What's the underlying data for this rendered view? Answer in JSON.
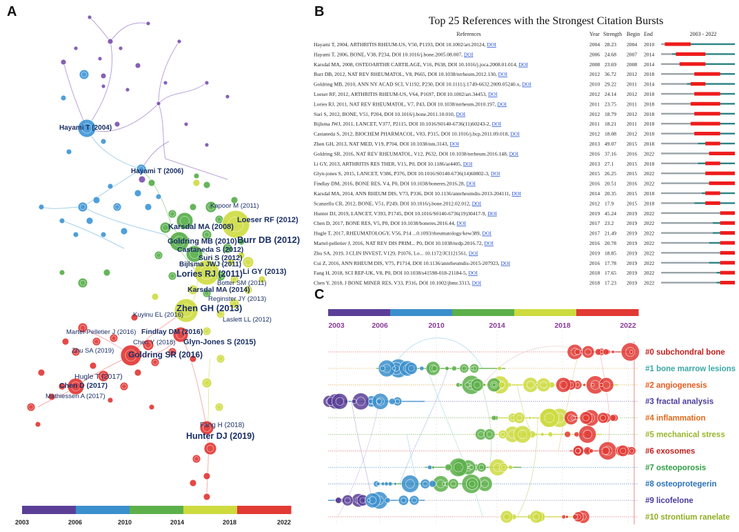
{
  "panels": {
    "a": "A",
    "b": "B",
    "c": "C"
  },
  "network": {
    "labels": [
      {
        "text": "Hayami T (2004)",
        "bold": true
      },
      {
        "text": "Hayami T (2006)",
        "bold": true
      },
      {
        "text": "Kapoor M (2011)",
        "bold": false
      },
      {
        "text": "Loeser RF (2012)",
        "bold": true
      },
      {
        "text": "Karsdal MA (2008)",
        "bold": true
      },
      {
        "text": "Burr DB (2012)",
        "bold": true
      },
      {
        "text": "Goldring MB (2010)",
        "bold": true
      },
      {
        "text": "Castaneda S (2012)",
        "bold": true
      },
      {
        "text": "Suri S (2012)",
        "bold": true
      },
      {
        "text": "Bijlsma JWJ (2011)",
        "bold": true
      },
      {
        "text": "Li GY (2013)",
        "bold": true
      },
      {
        "text": "Lories RJ (2011)",
        "bold": true
      },
      {
        "text": "Botter SM (2011)",
        "bold": false
      },
      {
        "text": "Karsdal MA (2014)",
        "bold": true
      },
      {
        "text": "Reginster JY (2013)",
        "bold": false
      },
      {
        "text": "Zhen GH (2013)",
        "bold": true
      },
      {
        "text": "Kuyinu EL (2016)",
        "bold": false
      },
      {
        "text": "Laslett LL (2012)",
        "bold": false
      },
      {
        "text": "Martel-Pelletier J (2016)",
        "bold": false
      },
      {
        "text": "Findlay DM (2016)",
        "bold": true
      },
      {
        "text": "Chen Y (2018)",
        "bold": false
      },
      {
        "text": "Glyn-Jones S (2015)",
        "bold": true
      },
      {
        "text": "Zhu SA (2019)",
        "bold": false
      },
      {
        "text": "Goldring SR (2016)",
        "bold": true
      },
      {
        "text": "Hugle T (2017)",
        "bold": false
      },
      {
        "text": "Chen D (2017)",
        "bold": true
      },
      {
        "text": "Mathiessen A (2017)",
        "bold": false
      },
      {
        "text": "Fang H (2018)",
        "bold": false
      },
      {
        "text": "Hunter DJ (2019)",
        "bold": true
      }
    ],
    "timeline_years": [
      "2003",
      "2006",
      "2010",
      "2014",
      "2018",
      "2022"
    ],
    "timeline_colors": [
      "#5b3f97",
      "#3a8fcc",
      "#5cb04a",
      "#cddb3f",
      "#e23a35"
    ]
  },
  "bursts": {
    "title": "Top 25 References with the Strongest Citation Bursts",
    "headers": {
      "references": "References",
      "year": "Year",
      "strength": "Strength",
      "begin": "Begin",
      "end": "End",
      "range": "2003 - 2022"
    },
    "colors": {
      "bar": "#2a8283",
      "burst": "#ee1c1c",
      "before": "#9aa3a8"
    },
    "rows": [
      {
        "ref": "Hayami T, 2004, ARTHRITIS RHEUM-US, V50, P1193, DOI 10.1002/art.20124,",
        "doi": "DOI",
        "year": "2004",
        "strength": "28.23",
        "begin": "2004",
        "end": "2010"
      },
      {
        "ref": "Hayami T, 2006, BONE, V38, P234, DOI 10.1016/j.bone.2005.08.007,",
        "doi": "DOI",
        "year": "2006",
        "strength": "24.68",
        "begin": "2007",
        "end": "2014"
      },
      {
        "ref": "Karsdal MA, 2008, OSTEOARTHR CARTILAGE, V16, P638, DOI 10.1016/j.joca.2008.01.014,",
        "doi": "DOI",
        "year": "2008",
        "strength": "23.69",
        "begin": "2008",
        "end": "2014"
      },
      {
        "ref": "Burr DB, 2012, NAT REV RHEUMATOL, V8, P665, DOI 10.1038/nrrheum.2012.130,",
        "doi": "DOI",
        "year": "2012",
        "strength": "36.72",
        "begin": "2012",
        "end": "2018"
      },
      {
        "ref": "Goldring MB, 2010, ANN NY ACAD SCI, V1192, P230, DOI 10.1111/j.1749-6632.2009.05240.x,",
        "doi": "DOI",
        "year": "2010",
        "strength": "29.22",
        "begin": "2011",
        "end": "2014"
      },
      {
        "ref": "Loeser RF, 2012, ARTHRITIS RHEUM-US, V64, P1697, DOI 10.1002/art.34453,",
        "doi": "DOI",
        "year": "2012",
        "strength": "24.14",
        "begin": "2012",
        "end": "2018"
      },
      {
        "ref": "Lories RJ, 2011, NAT REV RHEUMATOL, V7, P43, DOI 10.1038/nrrheum.2010.197,",
        "doi": "DOI",
        "year": "2011",
        "strength": "23.75",
        "begin": "2011",
        "end": "2018"
      },
      {
        "ref": "Suri S, 2012, BONE, V51, P204, DOI 10.1016/j.bone.2011.10.010,",
        "doi": "DOI",
        "year": "2012",
        "strength": "18.79",
        "begin": "2012",
        "end": "2018"
      },
      {
        "ref": "Bijlsma JWJ, 2011, LANCET, V377, P2115, DOI 10.1016/S0140-6736(11)60243-2,",
        "doi": "DOI",
        "year": "2011",
        "strength": "18.21",
        "begin": "2011",
        "end": "2018"
      },
      {
        "ref": "Castaneda S, 2012, BIOCHEM PHARMACOL, V83, P315, DOI 10.1016/j.bcp.2011.09.018,",
        "doi": "DOI",
        "year": "2012",
        "strength": "18.08",
        "begin": "2012",
        "end": "2018"
      },
      {
        "ref": "Zhen GH, 2013, NAT MED, V19, P704, DOI 10.1038/nm.3143,",
        "doi": "DOI",
        "year": "2013",
        "strength": "49.07",
        "begin": "2015",
        "end": "2018"
      },
      {
        "ref": "Goldring SR, 2016, NAT REV RHEUMATOL, V12, P632, DOI 10.1038/nrrheum.2016.148,",
        "doi": "DOI",
        "year": "2016",
        "strength": "37.16",
        "begin": "2016",
        "end": "2022"
      },
      {
        "ref": "Li GY, 2013, ARTHRITIS RES THER, V15, P0, DOI 10.1186/ar4405,",
        "doi": "DOI",
        "year": "2013",
        "strength": "27.1",
        "begin": "2015",
        "end": "2018"
      },
      {
        "ref": "Glyn-jones S, 2015, LANCET, V386, P376, DOI 10.1016/S0140-6736(14)60802-3,",
        "doi": "DOI",
        "year": "2015",
        "strength": "26.25",
        "begin": "2015",
        "end": "2022"
      },
      {
        "ref": "Findlay DM, 2016, BONE RES, V4, P0, DOI 10.1038/boneres.2016.28,",
        "doi": "DOI",
        "year": "2016",
        "strength": "20.51",
        "begin": "2016",
        "end": "2022"
      },
      {
        "ref": "Karsdal MA, 2014, ANN RHEUM DIS, V73, P336, DOI 10.1136/annrheumdis-2013-204111,",
        "doi": "DOI",
        "year": "2014",
        "strength": "20.35",
        "begin": "2015",
        "end": "2018"
      },
      {
        "ref": "Scanzello CR, 2012, BONE, V51, P249, DOI 10.1016/j.bone.2012.02.012,",
        "doi": "DOI",
        "year": "2012",
        "strength": "17.9",
        "begin": "2015",
        "end": "2018"
      },
      {
        "ref": "Hunter DJ, 2019, LANCET, V393, P1745, DOI 10.1016/S0140-6736(19)30417-9,",
        "doi": "DOI",
        "year": "2019",
        "strength": "45.24",
        "begin": "2019",
        "end": "2022"
      },
      {
        "ref": "Chen D, 2017, BONE RES, V5, P0, DOI 10.1038/boneres.2016.44,",
        "doi": "DOI",
        "year": "2017",
        "strength": "23.2",
        "begin": "2019",
        "end": "2022"
      },
      {
        "ref": "Hugle T, 2017, RHEUMATOLOGY, V56, P14 ...0.1093/rheumatology/kew389,",
        "doi": "DOI",
        "year": "2017",
        "strength": "21.49",
        "begin": "2019",
        "end": "2022"
      },
      {
        "ref": "Martel-pelletier J, 2016, NAT REV DIS PRIM... P0, DOI 10.1038/nrdp.2016.72,",
        "doi": "DOI",
        "year": "2016",
        "strength": "20.78",
        "begin": "2019",
        "end": "2022"
      },
      {
        "ref": "Zhu SA, 2019, J CLIN INVEST, V129, P1076, Lo... 10.1172/JCI121561,",
        "doi": "DOI",
        "year": "2019",
        "strength": "18.85",
        "begin": "2019",
        "end": "2022"
      },
      {
        "ref": "Cui Z, 2016, ANN RHEUM DIS, V75, P1714, DOI 10.1136/annrheumdis-2015-207923,",
        "doi": "DOI",
        "year": "2016",
        "strength": "17.78",
        "begin": "2019",
        "end": "2022"
      },
      {
        "ref": "Fang H, 2018, SCI REP-UK, V8, P0, DOI 10.1038/s41598-018-21184-5,",
        "doi": "DOI",
        "year": "2018",
        "strength": "17.65",
        "begin": "2019",
        "end": "2022"
      },
      {
        "ref": "Chen Y, 2018, J BONE MINER RES, V33, P316, DOI 10.1002/jbmr.3313,",
        "doi": "DOI",
        "year": "2018",
        "strength": "17.23",
        "begin": "2019",
        "end": "2022"
      }
    ]
  },
  "timeline": {
    "years": [
      "2003",
      "2006",
      "2010",
      "2014",
      "2018",
      "2022"
    ],
    "clusters": [
      {
        "label": "#0 subchondral bone",
        "color": "#c0201e"
      },
      {
        "label": "#1 bone marrow lesions",
        "color": "#3aa7a6"
      },
      {
        "label": "#2 angiogenesis",
        "color": "#e85a1c"
      },
      {
        "label": "#3 fractal analysis",
        "color": "#4a3d9c"
      },
      {
        "label": "#4 inflammation",
        "color": "#e06a1a"
      },
      {
        "label": "#5 mechanical stress",
        "color": "#98b52c"
      },
      {
        "label": "#6 exosomes",
        "color": "#c0201e"
      },
      {
        "label": "#7 osteoporosis",
        "color": "#2f9e44"
      },
      {
        "label": "#8 osteoprotegerin",
        "color": "#2a72b8"
      },
      {
        "label": "#9 licofelone",
        "color": "#4a3d9c"
      },
      {
        "label": "#10 strontium ranelate",
        "color": "#8fae22"
      }
    ]
  }
}
